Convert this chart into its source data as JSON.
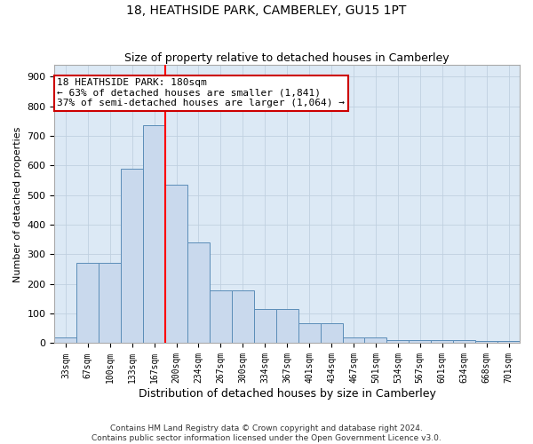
{
  "title": "18, HEATHSIDE PARK, CAMBERLEY, GU15 1PT",
  "subtitle": "Size of property relative to detached houses in Camberley",
  "xlabel": "Distribution of detached houses by size in Camberley",
  "ylabel": "Number of detached properties",
  "bins": [
    "33sqm",
    "67sqm",
    "100sqm",
    "133sqm",
    "167sqm",
    "200sqm",
    "234sqm",
    "267sqm",
    "300sqm",
    "334sqm",
    "367sqm",
    "401sqm",
    "434sqm",
    "467sqm",
    "501sqm",
    "534sqm",
    "567sqm",
    "601sqm",
    "634sqm",
    "668sqm",
    "701sqm"
  ],
  "bar_heights": [
    20,
    270,
    270,
    590,
    735,
    535,
    340,
    178,
    178,
    115,
    115,
    68,
    68,
    20,
    20,
    10,
    10,
    10,
    10,
    8,
    8
  ],
  "bar_color": "#c9d9ed",
  "bar_edge_color": "#5b8db8",
  "red_line_x": 4.5,
  "annotation_line1": "18 HEATHSIDE PARK: 180sqm",
  "annotation_line2": "← 63% of detached houses are smaller (1,841)",
  "annotation_line3": "37% of semi-detached houses are larger (1,064) →",
  "annotation_box_color": "#ffffff",
  "annotation_box_edge": "#cc0000",
  "ylim": [
    0,
    940
  ],
  "yticks": [
    0,
    100,
    200,
    300,
    400,
    500,
    600,
    700,
    800,
    900
  ],
  "grid_color": "#c0d0e0",
  "background_color": "#dce9f5",
  "footnote1": "Contains HM Land Registry data © Crown copyright and database right 2024.",
  "footnote2": "Contains public sector information licensed under the Open Government Licence v3.0."
}
